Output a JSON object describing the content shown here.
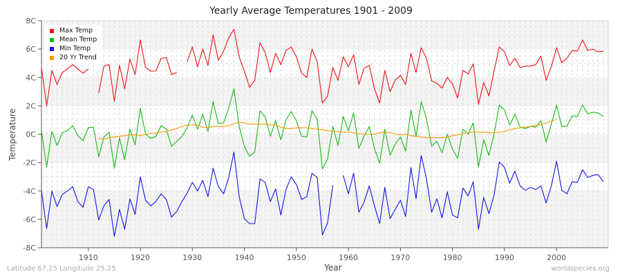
{
  "title": "Yearly Average Temperatures 1901 - 2009",
  "footer": {
    "location": "Latitude 67.25 Longitude 25.25",
    "source": "worldspecies.org"
  },
  "legend": [
    {
      "label": "Max Temp",
      "color": "#ee1111"
    },
    {
      "label": "Mean Temp",
      "color": "#11bb11"
    },
    {
      "label": "Min Temp",
      "color": "#1111ee"
    },
    {
      "label": "20 Yr Trend",
      "color": "#ff9900"
    }
  ],
  "chart_data": {
    "type": "line",
    "title": "Yearly Average Temperatures 1901 - 2009",
    "xlabel": "Year",
    "ylabel": "Temperature",
    "ylim": [
      -8,
      8
    ],
    "xlim": [
      1901,
      2009
    ],
    "yticks": [
      "-8C",
      "-6C",
      "-4C",
      "-2C",
      "0C",
      "2C",
      "4C",
      "6C",
      "8C"
    ],
    "xticks": [
      "1910",
      "1920",
      "1930",
      "1940",
      "1950",
      "1960",
      "1970",
      "1980",
      "1990",
      "2000"
    ],
    "grid": true,
    "legend_position": "top-left",
    "x_start": 1901,
    "series": [
      {
        "name": "Max Temp",
        "color": "#ee1111",
        "values": [
          4.7,
          2.0,
          4.5,
          3.5,
          4.35,
          4.6,
          4.9,
          4.6,
          4.3,
          4.6,
          null,
          2.9,
          4.8,
          4.9,
          2.3,
          4.85,
          3.2,
          5.3,
          4.2,
          6.65,
          4.7,
          4.45,
          4.45,
          5.35,
          5.4,
          4.2,
          4.35,
          null,
          5.1,
          6.15,
          4.75,
          6.0,
          4.85,
          7.0,
          5.2,
          5.85,
          6.8,
          7.4,
          5.45,
          4.45,
          3.3,
          3.8,
          6.45,
          5.75,
          4.35,
          5.7,
          4.9,
          5.9,
          6.15,
          5.45,
          4.3,
          4.0,
          6.0,
          5.1,
          2.2,
          2.7,
          4.7,
          3.8,
          5.45,
          4.75,
          5.6,
          3.5,
          4.65,
          4.85,
          3.2,
          2.2,
          4.5,
          3.0,
          3.8,
          4.15,
          3.5,
          5.7,
          4.35,
          6.1,
          5.35,
          3.75,
          3.6,
          3.25,
          4.0,
          3.55,
          2.55,
          4.5,
          4.25,
          4.95,
          2.1,
          3.65,
          2.7,
          4.45,
          6.15,
          5.8,
          4.85,
          5.35,
          4.7,
          4.8,
          4.8,
          4.9,
          5.5,
          3.8,
          4.75,
          6.1,
          5.05,
          5.35,
          5.9,
          5.85,
          6.65,
          5.9,
          6.0,
          5.8,
          5.85
        ]
      },
      {
        "name": "Mean Temp",
        "color": "#11bb11",
        "values": [
          0.25,
          -2.3,
          0.2,
          -0.8,
          0.1,
          0.25,
          0.6,
          -0.1,
          -0.45,
          0.45,
          0.5,
          -1.6,
          -0.2,
          0.15,
          -2.4,
          -0.25,
          -1.8,
          0.35,
          -0.75,
          1.85,
          0.0,
          -0.3,
          -0.15,
          0.6,
          0.35,
          -0.85,
          -0.5,
          -0.15,
          0.45,
          1.35,
          0.35,
          1.4,
          0.2,
          2.3,
          0.75,
          0.8,
          1.85,
          3.2,
          0.55,
          -0.85,
          -1.55,
          -1.25,
          1.65,
          1.2,
          -0.15,
          0.95,
          -0.4,
          1.0,
          1.6,
          0.95,
          -0.15,
          -0.2,
          1.65,
          1.05,
          -2.45,
          -1.75,
          0.55,
          -0.8,
          1.25,
          0.25,
          1.5,
          -1.0,
          -0.15,
          0.55,
          -1.0,
          -2.05,
          0.35,
          -1.5,
          -0.7,
          -0.2,
          -1.2,
          1.7,
          -0.15,
          2.3,
          1.1,
          -0.85,
          -0.5,
          -1.3,
          0.0,
          -1.05,
          -1.7,
          0.35,
          0.0,
          0.8,
          -2.3,
          -0.4,
          -1.5,
          0.0,
          2.05,
          1.7,
          0.65,
          1.4,
          0.5,
          0.4,
          0.55,
          0.5,
          0.95,
          -0.55,
          0.7,
          2.05,
          0.55,
          0.55,
          1.3,
          1.25,
          2.05,
          1.45,
          1.55,
          1.5,
          1.25
        ]
      },
      {
        "name": "Min Temp",
        "color": "#1111ee",
        "values": [
          -4.0,
          -6.65,
          -4.0,
          -5.1,
          -4.25,
          -4.0,
          -3.7,
          -4.75,
          -5.15,
          -3.7,
          -3.9,
          -6.05,
          -5.05,
          -4.6,
          -7.2,
          -5.3,
          -6.7,
          -4.55,
          -5.65,
          -3.0,
          -4.65,
          -5.05,
          -4.75,
          -4.2,
          -4.6,
          -5.85,
          -5.45,
          -4.75,
          -4.15,
          -3.4,
          -4.0,
          -3.25,
          -4.4,
          -2.4,
          -3.7,
          -4.2,
          -3.05,
          -1.25,
          -4.4,
          -5.95,
          -6.3,
          -6.3,
          -3.15,
          -3.4,
          -4.75,
          -3.85,
          -5.7,
          -3.9,
          -3.0,
          -3.55,
          -4.6,
          -4.4,
          -2.75,
          -3.05,
          -7.1,
          -6.25,
          -3.6,
          null,
          -2.9,
          -4.2,
          -2.75,
          -5.5,
          -4.8,
          -3.65,
          -5.05,
          -6.3,
          -3.75,
          -5.95,
          -5.3,
          -4.65,
          -5.8,
          -2.35,
          -4.55,
          -1.5,
          -3.15,
          -5.5,
          -4.55,
          -5.9,
          -4.05,
          -5.7,
          -5.9,
          -3.8,
          -4.35,
          -3.35,
          -6.7,
          -4.45,
          -5.6,
          -4.3,
          -1.95,
          -2.35,
          -3.45,
          -2.6,
          -3.65,
          -3.95,
          -3.75,
          -3.9,
          -3.65,
          -4.85,
          -3.65,
          -1.9,
          -3.95,
          -4.2,
          -3.35,
          -3.4,
          -2.5,
          -3.05,
          -2.9,
          -2.85,
          -3.35
        ]
      },
      {
        "name": "20 Yr Trend",
        "color": "#ff9900",
        "values": [
          null,
          null,
          null,
          null,
          null,
          null,
          null,
          null,
          null,
          null,
          null,
          -0.3,
          -0.35,
          -0.25,
          -0.2,
          -0.15,
          -0.1,
          -0.05,
          -0.05,
          -0.1,
          0.0,
          0.05,
          0.1,
          0.15,
          0.2,
          0.3,
          0.4,
          0.55,
          0.65,
          0.65,
          0.65,
          0.5,
          0.45,
          0.55,
          0.55,
          0.55,
          0.6,
          0.75,
          0.85,
          0.8,
          0.7,
          0.7,
          0.7,
          0.7,
          0.65,
          0.65,
          0.5,
          0.4,
          0.4,
          0.45,
          0.45,
          0.45,
          0.4,
          0.35,
          0.3,
          0.25,
          0.2,
          0.2,
          0.15,
          0.15,
          0.1,
          0.05,
          0.0,
          0.0,
          0.0,
          0.1,
          0.15,
          0.1,
          0.0,
          -0.05,
          0.0,
          -0.1,
          -0.15,
          -0.2,
          -0.25,
          -0.25,
          -0.25,
          -0.25,
          -0.2,
          -0.1,
          -0.05,
          0.05,
          0.1,
          0.15,
          0.15,
          0.15,
          0.1,
          0.1,
          0.15,
          0.2,
          0.3,
          0.4,
          0.45,
          0.5,
          0.55,
          0.6,
          0.7,
          0.8,
          0.9,
          1.05,
          null,
          null,
          null,
          null,
          null,
          null,
          null,
          null,
          null,
          null
        ]
      }
    ]
  }
}
